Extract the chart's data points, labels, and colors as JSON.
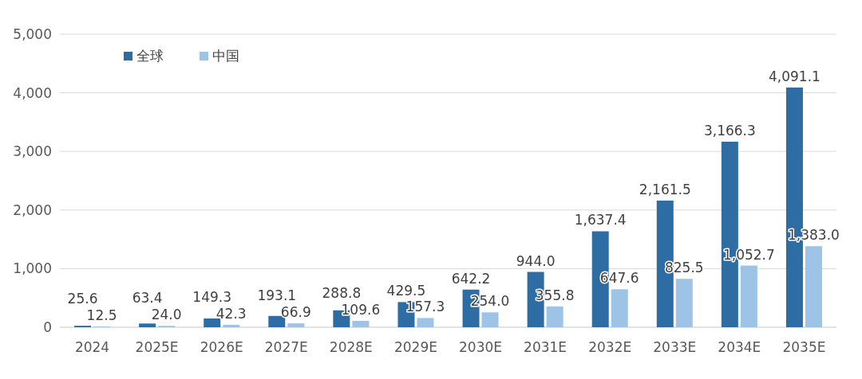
{
  "chart_data": {
    "type": "bar",
    "categories": [
      "2024",
      "2025E",
      "2026E",
      "2027E",
      "2028E",
      "2029E",
      "2030E",
      "2031E",
      "2032E",
      "2033E",
      "2034E",
      "2035E"
    ],
    "series": [
      {
        "name": "全球",
        "color": "#2e6ca4",
        "values": [
          25.6,
          63.4,
          149.3,
          193.1,
          288.8,
          429.5,
          642.2,
          944.0,
          1637.4,
          2161.5,
          3166.3,
          4091.1
        ],
        "value_labels": [
          "25.6",
          "63.4",
          "149.3",
          "193.1",
          "288.8",
          "429.5",
          "642.2",
          "944.0",
          "1,637.4",
          "2,161.5",
          "3,166.3",
          "4,091.1"
        ]
      },
      {
        "name": "中国",
        "color": "#9dc3e6",
        "values": [
          12.5,
          24.0,
          42.3,
          66.9,
          109.6,
          157.3,
          254.0,
          355.8,
          647.6,
          825.5,
          1052.7,
          1383.0
        ],
        "value_labels": [
          "12.5",
          "24.0",
          "42.3",
          "66.9",
          "109.6",
          "157.3",
          "254.0",
          "355.8",
          "647.6",
          "825.5",
          "1,052.7",
          "1,383.0"
        ]
      }
    ],
    "ylim": [
      0,
      5000
    ],
    "yticks": [
      0,
      {
        "value": 1000,
        "label": "1,000"
      },
      {
        "value": 2000,
        "label": "2,000"
      },
      {
        "value": 3000,
        "label": "3,000"
      },
      {
        "value": 4000,
        "label": "4,000"
      },
      {
        "value": 5000,
        "label": "5,000"
      }
    ],
    "grid": "y",
    "legend": "top left"
  }
}
